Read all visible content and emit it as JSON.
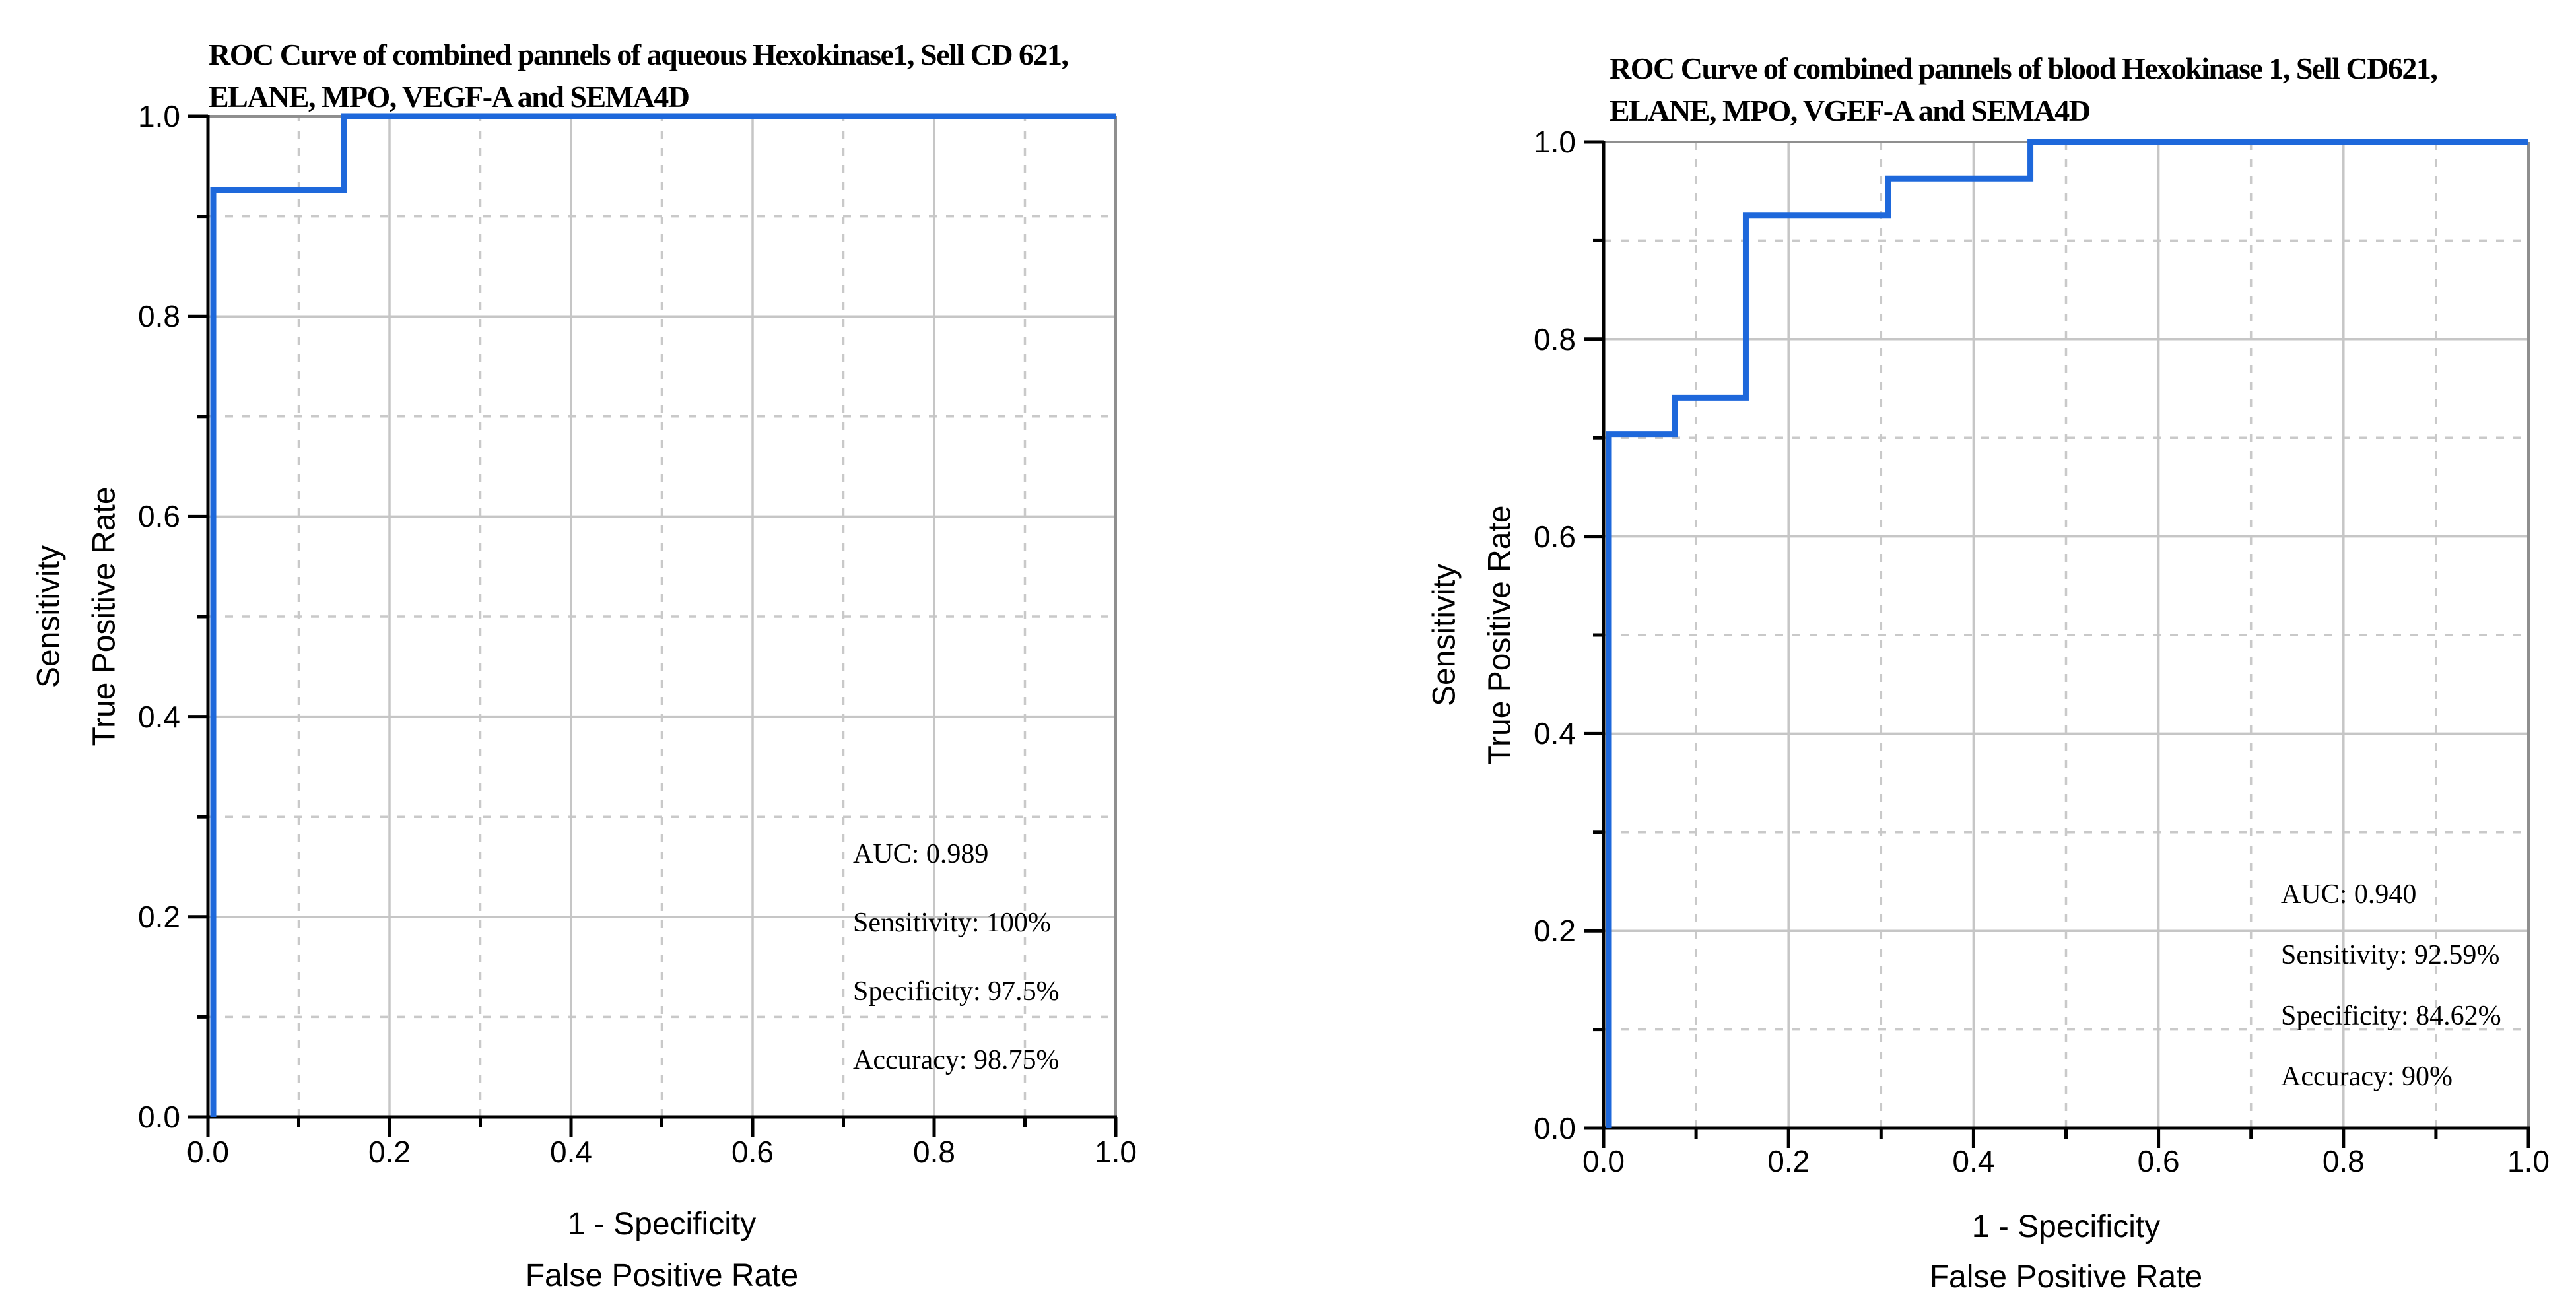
{
  "background": "#ffffff",
  "accent_colors": {
    "curve_blue": "#1E68DB",
    "grid_major": "#c6c6c6",
    "grid_minor": "#c9c9c9",
    "frame_gray": "#8f8f8f",
    "axis_black": "#000000"
  },
  "panels": [
    {
      "title_line1": "ROC Curve of combined pannels of aqueous Hexokinase1, Sell CD 621,",
      "title_line2": "ELANE, MPO, VEGF-A and SEMA4D",
      "y_title_outer": "Sensitivity",
      "y_title_inner": "True Positive Rate",
      "x_title_line1": "1 - Specificity",
      "x_title_line2": "False Positive Rate",
      "stats": [
        "AUC: 0.989",
        "Sensitivity: 100%",
        "Specificity: 97.5%",
        "Accuracy: 98.75%"
      ]
    },
    {
      "title_line1": "ROC Curve of combined pannels of blood Hexokinase 1, Sell CD621,",
      "title_line2": "ELANE, MPO, VGEF-A and SEMA4D",
      "y_title_outer": "Sensitivity",
      "y_title_inner": "True Positive Rate",
      "x_title_line1": "1 - Specificity",
      "x_title_line2": "False Positive Rate",
      "stats": [
        "AUC: 0.940",
        "Sensitivity: 92.59%",
        "Specificity: 84.62%",
        "Accuracy: 90%"
      ]
    }
  ],
  "chart_data": [
    {
      "type": "line",
      "subtype": "roc-step-curve",
      "title": "ROC Curve of combined pannels of aqueous Hexokinase1, Sell CD 621, ELANE, MPO, VEGF-A and SEMA4D",
      "xlabel": "1 - Specificity / False Positive Rate",
      "ylabel": "Sensitivity / True Positive Rate",
      "xlim": [
        0.0,
        1.0
      ],
      "ylim": [
        0.0,
        1.0
      ],
      "xticks": [
        "0.0",
        "0.2",
        "0.4",
        "0.6",
        "0.8",
        "1.0"
      ],
      "yticks": [
        "0.0",
        "0.2",
        "0.4",
        "0.6",
        "0.8",
        "1.0"
      ],
      "minor_tick_step": 0.1,
      "grid": {
        "major": "solid",
        "minor": "dashed"
      },
      "legend": "none",
      "series": [
        {
          "name": "ROC curve",
          "x": [
            0.0,
            0.0,
            0.15,
            0.15,
            1.0
          ],
          "y": [
            0.0,
            0.9259,
            0.9259,
            1.0,
            1.0
          ]
        }
      ],
      "annotations": {
        "auc": 0.989,
        "sensitivity_pct": 100,
        "specificity_pct": 97.5,
        "accuracy_pct": 98.75
      }
    },
    {
      "type": "line",
      "subtype": "roc-step-curve",
      "title": "ROC Curve of combined pannels of blood Hexokinase 1, Sell CD621, ELANE, MPO, VGEF-A and SEMA4D",
      "xlabel": "1 - Specificity / False Positive Rate",
      "ylabel": "Sensitivity / True Positive Rate",
      "xlim": [
        0.0,
        1.0
      ],
      "ylim": [
        0.0,
        1.0
      ],
      "xticks": [
        "0.0",
        "0.2",
        "0.4",
        "0.6",
        "0.8",
        "1.0"
      ],
      "yticks": [
        "0.0",
        "0.2",
        "0.4",
        "0.6",
        "0.8",
        "1.0"
      ],
      "minor_tick_step": 0.1,
      "grid": {
        "major": "solid",
        "minor": "dashed"
      },
      "legend": "none",
      "series": [
        {
          "name": "ROC curve",
          "x": [
            0.0,
            0.0,
            0.0769,
            0.0769,
            0.1538,
            0.1538,
            0.3077,
            0.3077,
            0.4615,
            0.4615,
            1.0
          ],
          "y": [
            0.0,
            0.7037,
            0.7037,
            0.7407,
            0.7407,
            0.9259,
            0.9259,
            0.963,
            0.963,
            1.0,
            1.0
          ]
        }
      ],
      "annotations": {
        "auc": 0.94,
        "sensitivity_pct": 92.59,
        "specificity_pct": 84.62,
        "accuracy_pct": 90
      }
    }
  ]
}
